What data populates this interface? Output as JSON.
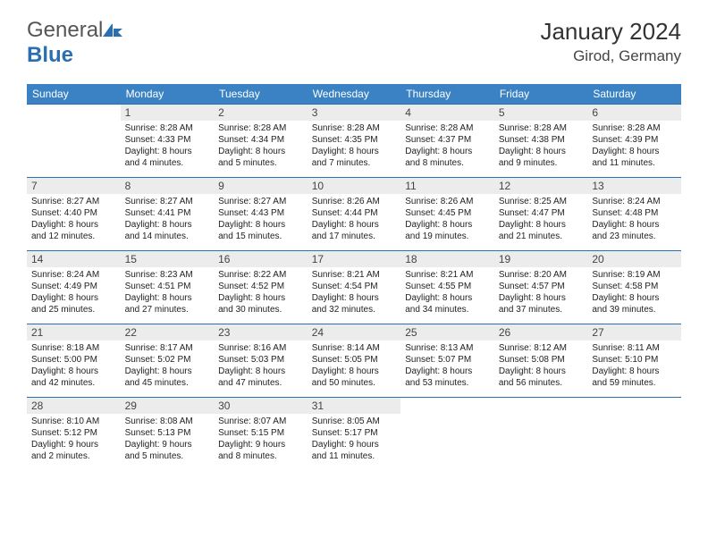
{
  "logo": {
    "general": "General",
    "blue": "Blue"
  },
  "title": "January 2024",
  "location": "Girod, Germany",
  "colors": {
    "header_bg": "#3b82c4",
    "header_text": "#ffffff",
    "daynum_bg": "#ececec",
    "row_divider": "#2a6fb0",
    "logo_accent": "#2a6fb0"
  },
  "day_headers": [
    "Sunday",
    "Monday",
    "Tuesday",
    "Wednesday",
    "Thursday",
    "Friday",
    "Saturday"
  ],
  "weeks": [
    [
      {
        "num": "",
        "lines": []
      },
      {
        "num": "1",
        "lines": [
          "Sunrise: 8:28 AM",
          "Sunset: 4:33 PM",
          "Daylight: 8 hours",
          "and 4 minutes."
        ]
      },
      {
        "num": "2",
        "lines": [
          "Sunrise: 8:28 AM",
          "Sunset: 4:34 PM",
          "Daylight: 8 hours",
          "and 5 minutes."
        ]
      },
      {
        "num": "3",
        "lines": [
          "Sunrise: 8:28 AM",
          "Sunset: 4:35 PM",
          "Daylight: 8 hours",
          "and 7 minutes."
        ]
      },
      {
        "num": "4",
        "lines": [
          "Sunrise: 8:28 AM",
          "Sunset: 4:37 PM",
          "Daylight: 8 hours",
          "and 8 minutes."
        ]
      },
      {
        "num": "5",
        "lines": [
          "Sunrise: 8:28 AM",
          "Sunset: 4:38 PM",
          "Daylight: 8 hours",
          "and 9 minutes."
        ]
      },
      {
        "num": "6",
        "lines": [
          "Sunrise: 8:28 AM",
          "Sunset: 4:39 PM",
          "Daylight: 8 hours",
          "and 11 minutes."
        ]
      }
    ],
    [
      {
        "num": "7",
        "lines": [
          "Sunrise: 8:27 AM",
          "Sunset: 4:40 PM",
          "Daylight: 8 hours",
          "and 12 minutes."
        ]
      },
      {
        "num": "8",
        "lines": [
          "Sunrise: 8:27 AM",
          "Sunset: 4:41 PM",
          "Daylight: 8 hours",
          "and 14 minutes."
        ]
      },
      {
        "num": "9",
        "lines": [
          "Sunrise: 8:27 AM",
          "Sunset: 4:43 PM",
          "Daylight: 8 hours",
          "and 15 minutes."
        ]
      },
      {
        "num": "10",
        "lines": [
          "Sunrise: 8:26 AM",
          "Sunset: 4:44 PM",
          "Daylight: 8 hours",
          "and 17 minutes."
        ]
      },
      {
        "num": "11",
        "lines": [
          "Sunrise: 8:26 AM",
          "Sunset: 4:45 PM",
          "Daylight: 8 hours",
          "and 19 minutes."
        ]
      },
      {
        "num": "12",
        "lines": [
          "Sunrise: 8:25 AM",
          "Sunset: 4:47 PM",
          "Daylight: 8 hours",
          "and 21 minutes."
        ]
      },
      {
        "num": "13",
        "lines": [
          "Sunrise: 8:24 AM",
          "Sunset: 4:48 PM",
          "Daylight: 8 hours",
          "and 23 minutes."
        ]
      }
    ],
    [
      {
        "num": "14",
        "lines": [
          "Sunrise: 8:24 AM",
          "Sunset: 4:49 PM",
          "Daylight: 8 hours",
          "and 25 minutes."
        ]
      },
      {
        "num": "15",
        "lines": [
          "Sunrise: 8:23 AM",
          "Sunset: 4:51 PM",
          "Daylight: 8 hours",
          "and 27 minutes."
        ]
      },
      {
        "num": "16",
        "lines": [
          "Sunrise: 8:22 AM",
          "Sunset: 4:52 PM",
          "Daylight: 8 hours",
          "and 30 minutes."
        ]
      },
      {
        "num": "17",
        "lines": [
          "Sunrise: 8:21 AM",
          "Sunset: 4:54 PM",
          "Daylight: 8 hours",
          "and 32 minutes."
        ]
      },
      {
        "num": "18",
        "lines": [
          "Sunrise: 8:21 AM",
          "Sunset: 4:55 PM",
          "Daylight: 8 hours",
          "and 34 minutes."
        ]
      },
      {
        "num": "19",
        "lines": [
          "Sunrise: 8:20 AM",
          "Sunset: 4:57 PM",
          "Daylight: 8 hours",
          "and 37 minutes."
        ]
      },
      {
        "num": "20",
        "lines": [
          "Sunrise: 8:19 AM",
          "Sunset: 4:58 PM",
          "Daylight: 8 hours",
          "and 39 minutes."
        ]
      }
    ],
    [
      {
        "num": "21",
        "lines": [
          "Sunrise: 8:18 AM",
          "Sunset: 5:00 PM",
          "Daylight: 8 hours",
          "and 42 minutes."
        ]
      },
      {
        "num": "22",
        "lines": [
          "Sunrise: 8:17 AM",
          "Sunset: 5:02 PM",
          "Daylight: 8 hours",
          "and 45 minutes."
        ]
      },
      {
        "num": "23",
        "lines": [
          "Sunrise: 8:16 AM",
          "Sunset: 5:03 PM",
          "Daylight: 8 hours",
          "and 47 minutes."
        ]
      },
      {
        "num": "24",
        "lines": [
          "Sunrise: 8:14 AM",
          "Sunset: 5:05 PM",
          "Daylight: 8 hours",
          "and 50 minutes."
        ]
      },
      {
        "num": "25",
        "lines": [
          "Sunrise: 8:13 AM",
          "Sunset: 5:07 PM",
          "Daylight: 8 hours",
          "and 53 minutes."
        ]
      },
      {
        "num": "26",
        "lines": [
          "Sunrise: 8:12 AM",
          "Sunset: 5:08 PM",
          "Daylight: 8 hours",
          "and 56 minutes."
        ]
      },
      {
        "num": "27",
        "lines": [
          "Sunrise: 8:11 AM",
          "Sunset: 5:10 PM",
          "Daylight: 8 hours",
          "and 59 minutes."
        ]
      }
    ],
    [
      {
        "num": "28",
        "lines": [
          "Sunrise: 8:10 AM",
          "Sunset: 5:12 PM",
          "Daylight: 9 hours",
          "and 2 minutes."
        ]
      },
      {
        "num": "29",
        "lines": [
          "Sunrise: 8:08 AM",
          "Sunset: 5:13 PM",
          "Daylight: 9 hours",
          "and 5 minutes."
        ]
      },
      {
        "num": "30",
        "lines": [
          "Sunrise: 8:07 AM",
          "Sunset: 5:15 PM",
          "Daylight: 9 hours",
          "and 8 minutes."
        ]
      },
      {
        "num": "31",
        "lines": [
          "Sunrise: 8:05 AM",
          "Sunset: 5:17 PM",
          "Daylight: 9 hours",
          "and 11 minutes."
        ]
      },
      {
        "num": "",
        "lines": []
      },
      {
        "num": "",
        "lines": []
      },
      {
        "num": "",
        "lines": []
      }
    ]
  ]
}
